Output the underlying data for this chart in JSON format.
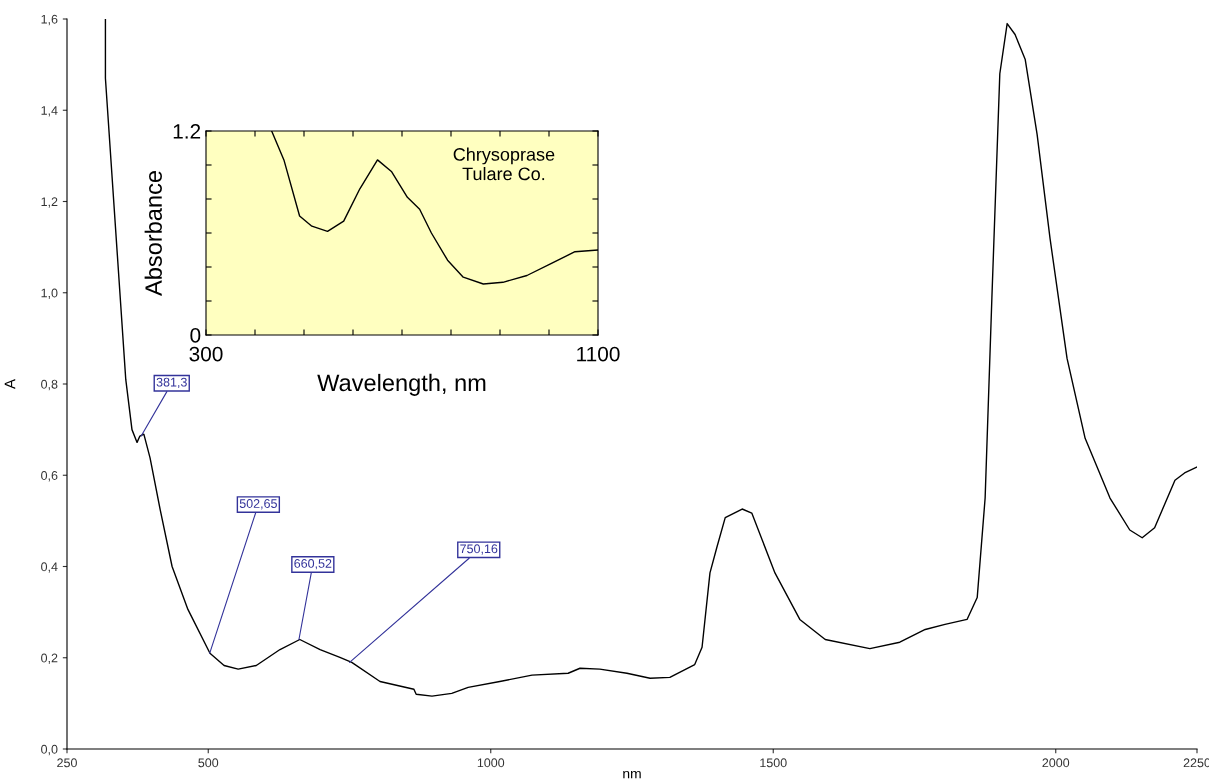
{
  "chart_data": [
    {
      "type": "line",
      "xlabel": "nm",
      "ylabel": "A",
      "xlim": [
        250,
        2250
      ],
      "ylim": [
        0,
        1.6
      ],
      "xticks": [
        250,
        500,
        1000,
        1500,
        2000,
        2250
      ],
      "yticks": [
        {
          "value": 0,
          "label": "0,0"
        },
        {
          "value": 0.2,
          "label": "0,2"
        },
        {
          "value": 0.4,
          "label": "0,4"
        },
        {
          "value": 0.6,
          "label": "0,6"
        },
        {
          "value": 0.8,
          "label": "0,8"
        },
        {
          "value": 1.0,
          "label": "1,0"
        },
        {
          "value": 1.2,
          "label": "1,2"
        },
        {
          "value": 1.4,
          "label": "1,4"
        },
        {
          "value": 1.6,
          "label": "1,6"
        }
      ],
      "grid": false,
      "legend": false,
      "series": [
        {
          "color": "#000000",
          "x": [
            318,
            318,
            354,
            365,
            374,
            379,
            386,
            397,
            415,
            436,
            464,
            503,
            528,
            553,
            585,
            627,
            662,
            698,
            733,
            754,
            804,
            864,
            868,
            896,
            931,
            960,
            1016,
            1073,
            1137,
            1158,
            1193,
            1241,
            1282,
            1317,
            1361,
            1374,
            1388,
            1400,
            1415,
            1445,
            1462,
            1503,
            1547,
            1592,
            1671,
            1724,
            1769,
            1804,
            1843,
            1861,
            1875,
            1887,
            1901,
            1914,
            1928,
            1946,
            1967,
            1990,
            2020,
            2052,
            2096,
            2131,
            2153,
            2175,
            2211,
            2228,
            2250
          ],
          "values": [
            1.6,
            1.47,
            0.81,
            0.7,
            0.672,
            0.686,
            0.69,
            0.638,
            0.524,
            0.4,
            0.306,
            0.21,
            0.183,
            0.175,
            0.183,
            0.218,
            0.24,
            0.218,
            0.201,
            0.19,
            0.148,
            0.131,
            0.12,
            0.116,
            0.122,
            0.135,
            0.148,
            0.162,
            0.166,
            0.177,
            0.175,
            0.166,
            0.155,
            0.157,
            0.185,
            0.223,
            0.386,
            0.441,
            0.507,
            0.526,
            0.517,
            0.386,
            0.284,
            0.24,
            0.22,
            0.234,
            0.262,
            0.273,
            0.284,
            0.332,
            0.55,
            0.99,
            1.48,
            1.59,
            1.566,
            1.511,
            1.347,
            1.118,
            0.856,
            0.681,
            0.55,
            0.48,
            0.463,
            0.485,
            0.589,
            0.605,
            0.618
          ]
        }
      ],
      "annotations": [
        {
          "text": "381,3",
          "x": 381.3,
          "y": 0.686
        },
        {
          "text": "502,65",
          "x": 502.65,
          "y": 0.21
        },
        {
          "text": "660,52",
          "x": 660.52,
          "y": 0.24
        },
        {
          "text": "750,16",
          "x": 750.16,
          "y": 0.19
        }
      ]
    },
    {
      "type": "line",
      "xlabel": "Wavelength, nm",
      "ylabel": "Absorbance",
      "xlim": [
        300,
        1100
      ],
      "ylim": [
        0,
        1.2
      ],
      "xticks": [
        300,
        {
          "value": 400,
          "label": null
        },
        {
          "value": 500,
          "label": null
        },
        {
          "value": 600,
          "label": null
        },
        {
          "value": 700,
          "label": null
        },
        {
          "value": 800,
          "label": null
        },
        {
          "value": 900,
          "label": null
        },
        {
          "value": 1000,
          "label": null
        },
        1100
      ],
      "yticks": [
        0,
        {
          "value": 0.2,
          "label": null
        },
        {
          "value": 0.4,
          "label": null
        },
        {
          "value": 0.6,
          "label": null
        },
        {
          "value": 0.8,
          "label": null
        },
        {
          "value": 1.0,
          "label": null
        },
        1.2
      ],
      "grid": false,
      "legend": false,
      "series": [
        {
          "color": "#000000",
          "x": [
            434,
            459,
            491,
            516,
            548,
            581,
            614,
            650,
            679,
            711,
            736,
            760,
            793,
            825,
            866,
            906,
            955,
            1004,
            1053,
            1100
          ],
          "values": [
            1.2,
            1.03,
            0.7,
            0.64,
            0.61,
            0.67,
            0.86,
            1.03,
            0.96,
            0.81,
            0.74,
            0.6,
            0.44,
            0.34,
            0.3,
            0.31,
            0.35,
            0.42,
            0.49,
            0.5
          ]
        }
      ],
      "annotations": [
        "Chrysoprase\nTulare Co."
      ]
    }
  ]
}
